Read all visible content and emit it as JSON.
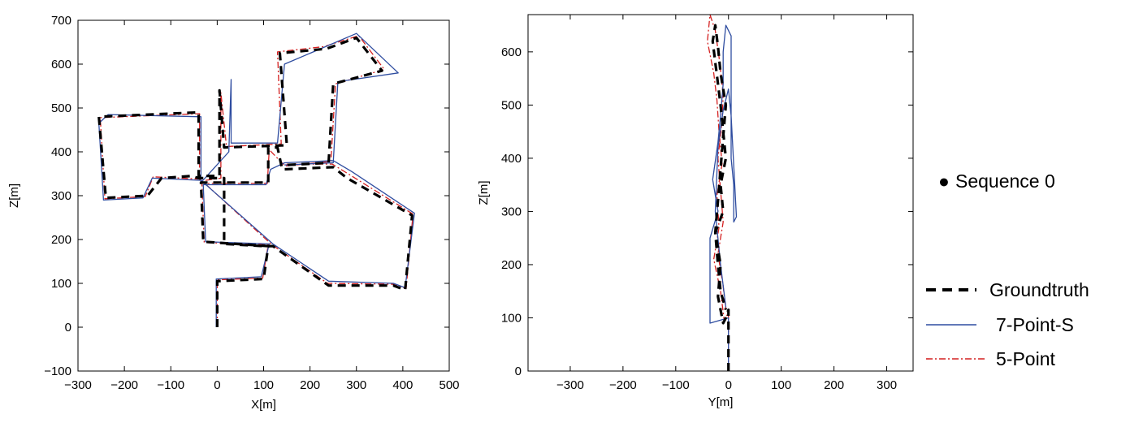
{
  "chart_data": [
    {
      "type": "line",
      "xlabel": "X[m]",
      "ylabel": "Z[m]",
      "xlim": [
        -300,
        500
      ],
      "ylim": [
        -100,
        700
      ],
      "xticks": [
        "−300",
        "−200",
        "−100",
        "0",
        "100",
        "200",
        "300",
        "400",
        "500"
      ],
      "yticks": [
        "−100",
        "0",
        "100",
        "200",
        "300",
        "400",
        "500",
        "600",
        "700"
      ],
      "grid": false,
      "series": [
        {
          "name": "Groundtruth",
          "color": "#000000",
          "style": "dashed",
          "points": [
            [
              0,
              0
            ],
            [
              0,
              105
            ],
            [
              100,
              110
            ],
            [
              110,
              185
            ],
            [
              -30,
              195
            ],
            [
              -35,
              330
            ],
            [
              110,
              330
            ],
            [
              110,
              410
            ],
            [
              130,
              410
            ],
            [
              140,
              360
            ],
            [
              250,
              365
            ],
            [
              280,
              340
            ],
            [
              420,
              255
            ],
            [
              405,
              85
            ],
            [
              380,
              95
            ],
            [
              240,
              95
            ],
            [
              120,
              185
            ],
            [
              100,
              185
            ],
            [
              15,
              190
            ],
            [
              15,
              340
            ],
            [
              -40,
              340
            ],
            [
              -55,
              345
            ],
            [
              -120,
              340
            ],
            [
              -150,
              300
            ],
            [
              -240,
              295
            ],
            [
              -255,
              480
            ],
            [
              -40,
              490
            ],
            [
              -40,
              345
            ],
            [
              5,
              345
            ],
            [
              5,
              540
            ],
            [
              15,
              410
            ],
            [
              150,
              415
            ],
            [
              135,
              625
            ],
            [
              235,
              635
            ],
            [
              300,
              660
            ],
            [
              355,
              585
            ],
            [
              250,
              555
            ],
            [
              240,
              375
            ],
            [
              150,
              370
            ]
          ]
        },
        {
          "name": "7-Point-S",
          "color": "#2f4da0",
          "style": "solid",
          "points": [
            [
              -2,
              0
            ],
            [
              -2,
              110
            ],
            [
              95,
              115
            ],
            [
              112,
              190
            ],
            [
              -25,
              195
            ],
            [
              -30,
              325
            ],
            [
              105,
              325
            ],
            [
              115,
              360
            ],
            [
              145,
              375
            ],
            [
              250,
              380
            ],
            [
              290,
              355
            ],
            [
              425,
              260
            ],
            [
              405,
              90
            ],
            [
              380,
              100
            ],
            [
              240,
              105
            ],
            [
              120,
              190
            ],
            [
              -35,
              335
            ],
            [
              -140,
              340
            ],
            [
              -160,
              295
            ],
            [
              -245,
              290
            ],
            [
              -255,
              465
            ],
            [
              -235,
              485
            ],
            [
              -35,
              480
            ],
            [
              -35,
              330
            ],
            [
              25,
              400
            ],
            [
              30,
              565
            ],
            [
              30,
              420
            ],
            [
              130,
              420
            ],
            [
              145,
              600
            ],
            [
              300,
              670
            ],
            [
              390,
              580
            ],
            [
              260,
              560
            ],
            [
              250,
              375
            ],
            [
              145,
              370
            ]
          ]
        },
        {
          "name": "5-Point",
          "color": "#d42020",
          "style": "dashdot",
          "points": [
            [
              0,
              0
            ],
            [
              0,
              108
            ],
            [
              98,
              112
            ],
            [
              110,
              188
            ],
            [
              -28,
              193
            ],
            [
              -33,
              328
            ],
            [
              108,
              328
            ],
            [
              112,
              405
            ],
            [
              142,
              372
            ],
            [
              248,
              372
            ],
            [
              285,
              348
            ],
            [
              422,
              258
            ],
            [
              407,
              88
            ],
            [
              382,
              98
            ],
            [
              238,
              100
            ],
            [
              118,
              188
            ],
            [
              -37,
              338
            ],
            [
              -138,
              343
            ],
            [
              -155,
              298
            ],
            [
              -242,
              293
            ],
            [
              -252,
              478
            ],
            [
              -38,
              487
            ],
            [
              -38,
              333
            ],
            [
              8,
              340
            ],
            [
              8,
              535
            ],
            [
              20,
              412
            ],
            [
              138,
              418
            ],
            [
              130,
              628
            ],
            [
              230,
              640
            ],
            [
              305,
              665
            ],
            [
              360,
              588
            ],
            [
              255,
              555
            ],
            [
              245,
              378
            ],
            [
              148,
              368
            ]
          ]
        }
      ]
    },
    {
      "type": "line",
      "xlabel": "Y[m]",
      "ylabel": "Z[m]",
      "xlim": [
        -380,
        350
      ],
      "ylim": [
        0,
        670
      ],
      "xticks": [
        "−300",
        "−200",
        "−100",
        "0",
        "100",
        "200",
        "300"
      ],
      "yticks": [
        "0",
        "100",
        "200",
        "300",
        "400",
        "500",
        "600"
      ],
      "grid": false,
      "series": [
        {
          "name": "Groundtruth",
          "color": "#000000",
          "style": "dashed",
          "points": [
            [
              0,
              0
            ],
            [
              0,
              115
            ],
            [
              -5,
              100
            ],
            [
              -10,
              90
            ],
            [
              -20,
              140
            ],
            [
              -15,
              200
            ],
            [
              -25,
              260
            ],
            [
              -10,
              300
            ],
            [
              -15,
              350
            ],
            [
              -5,
              400
            ],
            [
              -10,
              450
            ],
            [
              -15,
              500
            ],
            [
              -20,
              540
            ],
            [
              -25,
              580
            ],
            [
              -30,
              620
            ],
            [
              -25,
              650
            ],
            [
              -20,
              610
            ],
            [
              -15,
              560
            ],
            [
              -5,
              500
            ],
            [
              -10,
              440
            ],
            [
              -15,
              380
            ],
            [
              -20,
              320
            ],
            [
              -25,
              260
            ],
            [
              -20,
              200
            ],
            [
              -15,
              150
            ],
            [
              -5,
              115
            ]
          ]
        },
        {
          "name": "7-Point-S",
          "color": "#2f4da0",
          "style": "solid",
          "points": [
            [
              0,
              0
            ],
            [
              0,
              100
            ],
            [
              -35,
              90
            ],
            [
              -35,
              250
            ],
            [
              -20,
              300
            ],
            [
              -30,
              360
            ],
            [
              -20,
              430
            ],
            [
              -15,
              480
            ],
            [
              -10,
              540
            ],
            [
              -10,
              600
            ],
            [
              -5,
              650
            ],
            [
              5,
              630
            ],
            [
              5,
              400
            ],
            [
              10,
              350
            ],
            [
              10,
              280
            ],
            [
              15,
              290
            ],
            [
              5,
              480
            ],
            [
              0,
              530
            ],
            [
              -10,
              490
            ],
            [
              -20,
              420
            ],
            [
              -25,
              300
            ],
            [
              -15,
              200
            ],
            [
              -5,
              120
            ]
          ]
        },
        {
          "name": "5-Point",
          "color": "#d42020",
          "style": "dashdot",
          "points": [
            [
              0,
              0
            ],
            [
              0,
              110
            ],
            [
              -8,
              95
            ],
            [
              -15,
              150
            ],
            [
              -28,
              210
            ],
            [
              -18,
              270
            ],
            [
              -22,
              330
            ],
            [
              -12,
              390
            ],
            [
              -18,
              450
            ],
            [
              -22,
              510
            ],
            [
              -28,
              560
            ],
            [
              -40,
              620
            ],
            [
              -35,
              670
            ],
            [
              -25,
              640
            ],
            [
              -18,
              590
            ],
            [
              -10,
              520
            ],
            [
              -12,
              470
            ],
            [
              -20,
              400
            ],
            [
              -15,
              340
            ],
            [
              -10,
              280
            ],
            [
              -20,
              220
            ],
            [
              -10,
              160
            ],
            [
              -5,
              115
            ]
          ]
        }
      ]
    }
  ],
  "legend": {
    "sequence_marker": "●",
    "sequence_label": "Sequence 0",
    "items": [
      {
        "name": "Groundtruth",
        "color": "#000000",
        "style": "dashed"
      },
      {
        "name": "7-Point-S",
        "color": "#2f4da0",
        "style": "solid"
      },
      {
        "name": "5-Point",
        "color": "#d42020",
        "style": "dashdot"
      }
    ]
  }
}
